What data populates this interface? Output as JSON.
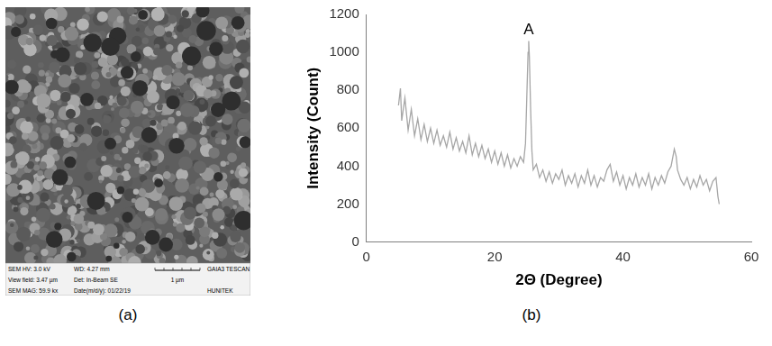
{
  "chart_data": {
    "type": "line",
    "x_label": "2Θ (Degree)",
    "y_label": "Intensity (Count)",
    "caption": "(b)",
    "color": "#a6a6a6",
    "xlim": [
      0,
      60
    ],
    "xticks": [
      0,
      20,
      40,
      60
    ],
    "ylim": [
      0,
      1200
    ],
    "yticks": [
      0,
      200,
      400,
      600,
      800,
      1000,
      1200
    ],
    "grid": false,
    "annotations": [
      {
        "text": "A",
        "x": 25.3,
        "y": 1070
      }
    ],
    "x": [
      5.0,
      5.3,
      5.5,
      6.0,
      6.5,
      7.0,
      7.5,
      8.0,
      8.5,
      9.0,
      9.5,
      10.0,
      10.5,
      11.0,
      11.5,
      12.0,
      12.5,
      13.0,
      13.5,
      14.0,
      14.5,
      15.0,
      15.5,
      16.0,
      16.5,
      17.0,
      17.5,
      18.0,
      18.5,
      19.0,
      19.5,
      20.0,
      20.5,
      21.0,
      21.5,
      22.0,
      22.5,
      23.0,
      23.5,
      24.0,
      24.5,
      24.8,
      25.0,
      25.2,
      25.3,
      25.4,
      25.6,
      25.8,
      26.0,
      26.5,
      27.0,
      27.5,
      28.0,
      28.5,
      29.0,
      29.5,
      30.0,
      30.5,
      31.0,
      31.5,
      32.0,
      32.5,
      33.0,
      33.5,
      34.0,
      34.5,
      35.0,
      35.5,
      36.0,
      36.5,
      37.0,
      37.5,
      38.0,
      38.5,
      39.0,
      39.5,
      40.0,
      40.5,
      41.0,
      41.5,
      42.0,
      42.5,
      43.0,
      43.5,
      44.0,
      44.5,
      45.0,
      45.5,
      46.0,
      46.5,
      47.0,
      47.5,
      48.0,
      48.3,
      48.5,
      49.0,
      49.5,
      50.0,
      50.5,
      51.0,
      51.5,
      52.0,
      52.5,
      53.0,
      53.5,
      54.0,
      54.5,
      54.8,
      55.0
    ],
    "values": [
      720,
      810,
      640,
      760,
      590,
      700,
      560,
      650,
      540,
      620,
      530,
      600,
      520,
      590,
      510,
      560,
      500,
      580,
      490,
      550,
      480,
      530,
      470,
      560,
      460,
      520,
      450,
      510,
      440,
      490,
      420,
      480,
      410,
      470,
      400,
      460,
      390,
      440,
      400,
      450,
      420,
      520,
      760,
      1000,
      1060,
      980,
      700,
      480,
      380,
      410,
      340,
      380,
      320,
      370,
      310,
      360,
      330,
      380,
      300,
      350,
      310,
      360,
      290,
      350,
      310,
      380,
      300,
      350,
      290,
      340,
      320,
      380,
      410,
      320,
      370,
      300,
      350,
      280,
      340,
      300,
      360,
      290,
      340,
      300,
      360,
      280,
      340,
      300,
      350,
      310,
      370,
      400,
      490,
      450,
      380,
      330,
      300,
      340,
      280,
      330,
      290,
      350,
      300,
      330,
      270,
      320,
      340,
      240,
      200
    ]
  },
  "sem_image": {
    "caption": "(a)",
    "info_rows": [
      [
        "SEM HV: 3.0 kV",
        "WD: 4.27 mm",
        "GAIA3 TESCAN"
      ],
      [
        "View field: 3.47 µm",
        "Det: In-Beam SE"
      ],
      [
        "SEM MAG: 59.9 kx",
        "Date(m/d/y): 01/22/19",
        "HUNITEK"
      ]
    ],
    "scale_bar": "1 µm"
  }
}
